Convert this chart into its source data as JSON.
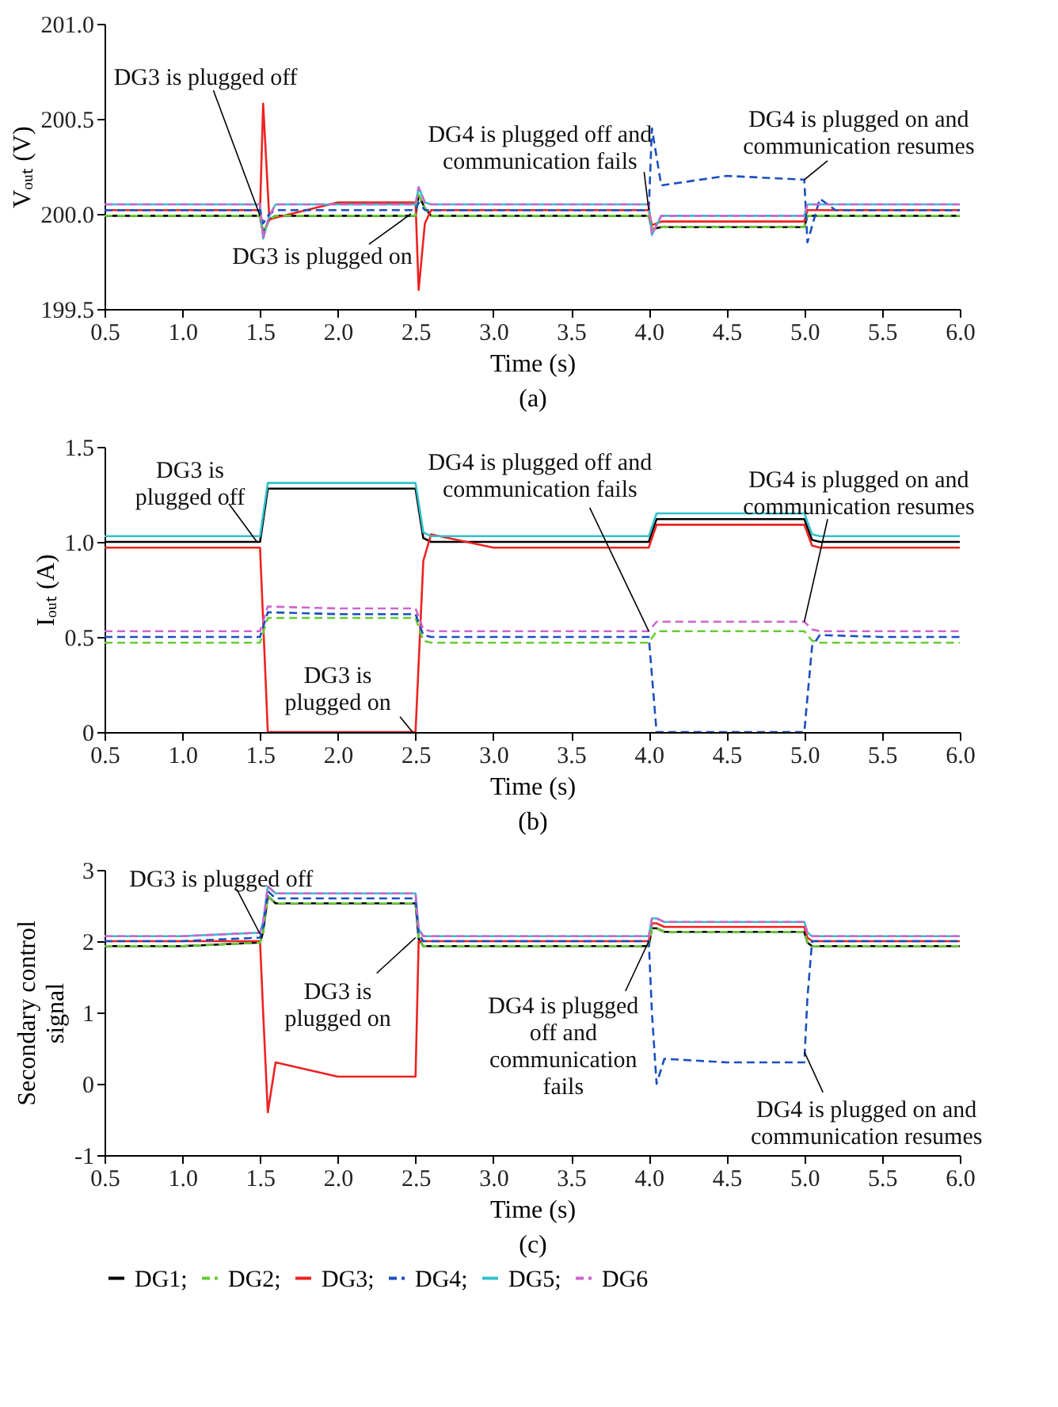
{
  "chart_data": [
    {
      "type": "line",
      "title": "(a)",
      "xlabel": "Time (s)",
      "ylabel": "Vₒᵤₜ (V)",
      "xlim": [
        0.5,
        6.0
      ],
      "ylim": [
        199.5,
        201.0
      ],
      "xticks": [
        0.5,
        {
          "value": 1,
          "label": "1.0"
        },
        1.5,
        {
          "value": 2,
          "label": "2.0"
        },
        2.5,
        {
          "value": 3,
          "label": "3.0"
        },
        3.5,
        {
          "value": 4,
          "label": "4.0"
        },
        4.5,
        {
          "value": 5,
          "label": "5.0"
        },
        5.5,
        {
          "value": 6,
          "label": "6.0"
        }
      ],
      "yticks": [
        199.5,
        {
          "value": 200,
          "label": "200.0"
        },
        200.5,
        {
          "value": 201,
          "label": "201.0"
        }
      ],
      "x": [
        0.5,
        1.0,
        1.5,
        1.52,
        1.56,
        1.6,
        2.0,
        2.5,
        2.52,
        2.56,
        2.6,
        3.0,
        3.5,
        4.0,
        4.02,
        4.08,
        4.5,
        5.0,
        5.02,
        5.1,
        5.2,
        5.5,
        6.0
      ],
      "series": [
        {
          "color": "#000000",
          "line_style": "solid",
          "values": [
            199.99,
            199.99,
            199.99,
            199.9,
            199.97,
            199.99,
            199.99,
            199.99,
            200.1,
            200.03,
            199.99,
            199.99,
            199.99,
            199.99,
            199.92,
            199.93,
            199.93,
            199.93,
            199.99,
            199.99,
            199.99,
            199.99,
            199.99
          ]
        },
        {
          "color": "#66cc33",
          "line_style": "dashed",
          "values": [
            199.99,
            199.99,
            199.99,
            199.9,
            199.97,
            199.99,
            199.99,
            199.99,
            200.1,
            200.03,
            199.99,
            199.99,
            199.99,
            199.99,
            199.92,
            199.93,
            199.93,
            199.93,
            199.99,
            199.99,
            199.99,
            199.99,
            199.99
          ]
        },
        {
          "color": "#ee2222",
          "line_style": "solid",
          "values": [
            200.02,
            200.02,
            200.02,
            200.58,
            199.97,
            199.98,
            200.06,
            200.06,
            199.6,
            199.95,
            200.02,
            200.02,
            200.02,
            200.02,
            199.94,
            199.96,
            199.96,
            199.96,
            200.02,
            200.02,
            200.02,
            200.02,
            200.02
          ]
        },
        {
          "color": "#1a4fbf",
          "line_style": "dashed",
          "values": [
            200.02,
            200.02,
            200.02,
            199.95,
            200.0,
            200.02,
            200.02,
            200.02,
            200.06,
            200.02,
            200.02,
            200.02,
            200.02,
            200.02,
            200.45,
            200.15,
            200.2,
            200.18,
            199.85,
            200.08,
            200.02,
            200.02,
            200.02
          ]
        },
        {
          "color": "#33c0cc",
          "line_style": "solid",
          "values": [
            200.05,
            200.05,
            200.05,
            199.87,
            199.99,
            200.05,
            200.05,
            200.05,
            200.14,
            200.06,
            200.05,
            200.05,
            200.05,
            200.05,
            199.89,
            199.99,
            199.99,
            199.99,
            200.05,
            200.05,
            200.05,
            200.05,
            200.05
          ]
        },
        {
          "color": "#cc66cc",
          "line_style": "dashed",
          "values": [
            200.05,
            200.05,
            200.05,
            199.87,
            199.99,
            200.05,
            200.05,
            200.05,
            200.14,
            200.06,
            200.05,
            200.05,
            200.05,
            200.05,
            199.89,
            199.99,
            199.99,
            199.99,
            200.05,
            200.05,
            200.05,
            200.05,
            200.05
          ]
        }
      ],
      "annotations": [
        {
          "text": "DG3 is plugged off",
          "x": 1.5,
          "y": 199.99
        },
        {
          "text": "DG3 is plugged on",
          "x": 2.47,
          "y": 200.0
        },
        {
          "text": "DG4 is plugged off and\ncommunication fails",
          "x": 4.0,
          "y": 200.02
        },
        {
          "text": "DG4 is plugged on and\ncommunication resumes",
          "x": 5.0,
          "y": 200.18
        }
      ],
      "grid": false
    },
    {
      "type": "line",
      "title": "(b)",
      "xlabel": "Time (s)",
      "ylabel": "Iₒᵤₜ (A)",
      "xlim": [
        0.5,
        6.0
      ],
      "ylim": [
        0,
        1.5
      ],
      "xticks": [
        0.5,
        {
          "value": 1,
          "label": "1.0"
        },
        1.5,
        {
          "value": 2,
          "label": "2.0"
        },
        2.5,
        {
          "value": 3,
          "label": "3.0"
        },
        3.5,
        {
          "value": 4,
          "label": "4.0"
        },
        4.5,
        {
          "value": 5,
          "label": "5.0"
        },
        5.5,
        {
          "value": 6,
          "label": "6.0"
        }
      ],
      "yticks": [
        0,
        0.5,
        {
          "value": 1,
          "label": "1.0"
        },
        1.5
      ],
      "x": [
        0.5,
        1.0,
        1.5,
        1.55,
        2.0,
        2.5,
        2.55,
        2.6,
        3.0,
        3.5,
        4.0,
        4.05,
        4.5,
        5.0,
        5.05,
        5.1,
        5.5,
        6.0
      ],
      "series": [
        {
          "color": "#000000",
          "line_style": "solid",
          "values": [
            1.0,
            1.0,
            1.0,
            1.28,
            1.28,
            1.28,
            1.02,
            1.0,
            1.0,
            1.0,
            1.0,
            1.12,
            1.12,
            1.12,
            1.01,
            1.0,
            1.0,
            1.0
          ]
        },
        {
          "color": "#66cc33",
          "line_style": "dashed",
          "values": [
            0.47,
            0.47,
            0.47,
            0.6,
            0.6,
            0.6,
            0.48,
            0.47,
            0.47,
            0.47,
            0.47,
            0.53,
            0.53,
            0.53,
            0.48,
            0.47,
            0.47,
            0.47
          ]
        },
        {
          "color": "#ee2222",
          "line_style": "solid",
          "values": [
            0.97,
            0.97,
            0.97,
            0.0,
            0.0,
            0.0,
            0.9,
            1.04,
            0.97,
            0.97,
            0.97,
            1.09,
            1.09,
            1.09,
            0.98,
            0.97,
            0.97,
            0.97
          ]
        },
        {
          "color": "#1a4fbf",
          "line_style": "dashed",
          "values": [
            0.5,
            0.5,
            0.5,
            0.63,
            0.62,
            0.62,
            0.51,
            0.5,
            0.5,
            0.5,
            0.5,
            0.0,
            0.0,
            0.0,
            0.45,
            0.51,
            0.5,
            0.5
          ]
        },
        {
          "color": "#33c0cc",
          "line_style": "solid",
          "values": [
            1.03,
            1.03,
            1.03,
            1.31,
            1.31,
            1.31,
            1.05,
            1.03,
            1.03,
            1.03,
            1.03,
            1.15,
            1.15,
            1.15,
            1.04,
            1.03,
            1.03,
            1.03
          ]
        },
        {
          "color": "#cc66cc",
          "line_style": "dashed",
          "values": [
            0.53,
            0.53,
            0.53,
            0.66,
            0.65,
            0.65,
            0.54,
            0.53,
            0.53,
            0.53,
            0.53,
            0.58,
            0.58,
            0.58,
            0.54,
            0.53,
            0.53,
            0.53
          ]
        }
      ],
      "annotations": [
        {
          "text": "DG3 is\nplugged off",
          "x": 1.48,
          "y": 1.0
        },
        {
          "text": "DG3 is\nplugged on",
          "x": 2.48,
          "y": 0.0
        },
        {
          "text": "DG4 is plugged off and\ncommunication fails",
          "x": 4.0,
          "y": 0.53
        },
        {
          "text": "DG4 is plugged on and\ncommunication resumes",
          "x": 5.0,
          "y": 0.58
        }
      ],
      "grid": false
    },
    {
      "type": "line",
      "title": "(c)",
      "xlabel": "Time (s)",
      "ylabel": "Secondary control\nsignal",
      "xlim": [
        0.5,
        6.0
      ],
      "ylim": [
        -1,
        3
      ],
      "xticks": [
        0.5,
        {
          "value": 1,
          "label": "1.0"
        },
        1.5,
        {
          "value": 2,
          "label": "2.0"
        },
        2.5,
        {
          "value": 3,
          "label": "3.0"
        },
        3.5,
        {
          "value": 4,
          "label": "4.0"
        },
        4.5,
        {
          "value": 5,
          "label": "5.0"
        },
        5.5,
        {
          "value": 6,
          "label": "6.0"
        }
      ],
      "yticks": [
        -1,
        0,
        1,
        2,
        3
      ],
      "x": [
        0.5,
        1.0,
        1.5,
        1.52,
        1.55,
        1.6,
        2.0,
        2.5,
        2.52,
        2.55,
        3.0,
        3.5,
        4.0,
        4.02,
        4.05,
        4.1,
        4.5,
        5.0,
        5.02,
        5.05,
        5.5,
        6.0
      ],
      "series": [
        {
          "name": "DG1;",
          "color": "#000000",
          "line_style": "solid",
          "values": [
            1.93,
            1.93,
            1.98,
            2.13,
            2.63,
            2.53,
            2.53,
            2.53,
            2.03,
            1.93,
            1.93,
            1.93,
            1.93,
            2.18,
            2.18,
            2.13,
            2.13,
            2.13,
            1.98,
            1.93,
            1.93,
            1.93
          ]
        },
        {
          "name": "DG2;",
          "color": "#66cc33",
          "line_style": "dashed",
          "values": [
            1.93,
            1.93,
            1.98,
            2.13,
            2.63,
            2.53,
            2.53,
            2.53,
            2.03,
            1.93,
            1.93,
            1.93,
            1.93,
            2.18,
            2.18,
            2.13,
            2.13,
            2.13,
            1.98,
            1.93,
            1.93,
            1.93
          ]
        },
        {
          "name": "DG3;",
          "color": "#ee2222",
          "line_style": "solid",
          "values": [
            2.0,
            2.0,
            2.0,
            1.0,
            -0.4,
            0.3,
            0.1,
            0.1,
            2.0,
            2.0,
            2.0,
            2.0,
            2.0,
            2.25,
            2.25,
            2.2,
            2.2,
            2.2,
            2.05,
            2.0,
            2.0,
            2.0
          ]
        },
        {
          "name": "DG4;",
          "color": "#1a4fbf",
          "line_style": "dashed",
          "values": [
            2.0,
            2.0,
            2.05,
            2.2,
            2.7,
            2.6,
            2.6,
            2.6,
            2.1,
            2.0,
            2.0,
            2.0,
            2.0,
            1.0,
            0.0,
            0.35,
            0.3,
            0.3,
            1.2,
            2.0,
            2.0,
            2.0
          ]
        },
        {
          "name": "DG5;",
          "color": "#33c0cc",
          "line_style": "solid",
          "values": [
            2.07,
            2.07,
            2.12,
            2.27,
            2.77,
            2.67,
            2.67,
            2.67,
            2.17,
            2.07,
            2.07,
            2.07,
            2.07,
            2.32,
            2.32,
            2.27,
            2.27,
            2.27,
            2.12,
            2.07,
            2.07,
            2.07
          ]
        },
        {
          "name": "DG6",
          "color": "#cc66cc",
          "line_style": "dashed",
          "values": [
            2.07,
            2.07,
            2.12,
            2.27,
            2.77,
            2.67,
            2.67,
            2.67,
            2.17,
            2.07,
            2.07,
            2.07,
            2.07,
            2.32,
            2.32,
            2.27,
            2.27,
            2.27,
            2.12,
            2.07,
            2.07,
            2.07
          ]
        }
      ],
      "annotations": [
        {
          "text": "DG3 is plugged off",
          "x": 1.5,
          "y": 2.1
        },
        {
          "text": "DG3 is\nplugged on",
          "x": 2.5,
          "y": 2.05
        },
        {
          "text": "DG4 is plugged\noff and\ncommunication\nfails",
          "x": 4.0,
          "y": 2.0
        },
        {
          "text": "DG4 is plugged on and\ncommunication resumes",
          "x": 5.0,
          "y": 0.45
        }
      ],
      "legend": "bottom",
      "grid": false
    }
  ]
}
